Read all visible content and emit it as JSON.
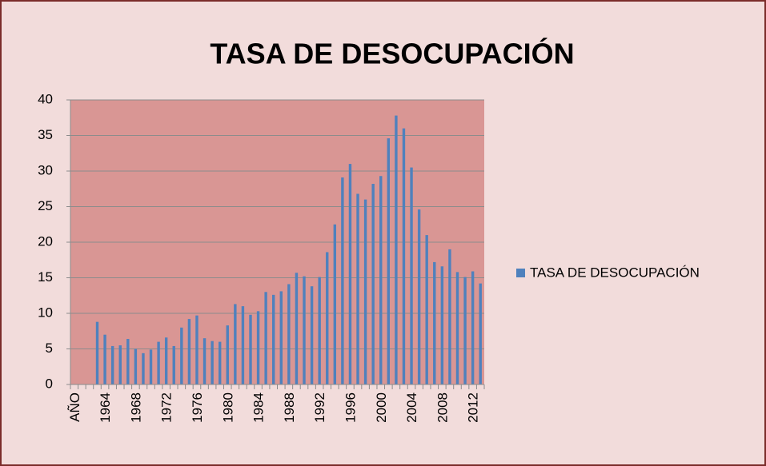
{
  "chart_data": {
    "type": "bar",
    "title": "TASA DE DESOCUPACIÓN",
    "categories": [
      "AÑO",
      null,
      null,
      null,
      "1964",
      null,
      null,
      null,
      "1968",
      null,
      null,
      null,
      "1972",
      null,
      null,
      null,
      "1976",
      null,
      null,
      null,
      "1980",
      null,
      null,
      null,
      "1984",
      null,
      null,
      null,
      "1988",
      null,
      null,
      null,
      "1992",
      null,
      null,
      null,
      "1996",
      null,
      null,
      null,
      "2000",
      null,
      null,
      null,
      "2004",
      null,
      null,
      null,
      "2008",
      null,
      null,
      null,
      "2012",
      null
    ],
    "series": [
      {
        "name": "TASA DE DESOCUPACIÓN",
        "color": "#4f81bd",
        "values": [
          null,
          null,
          null,
          8.8,
          7.0,
          5.4,
          5.5,
          6.4,
          5.0,
          4.4,
          4.9,
          6.0,
          6.6,
          5.4,
          8.0,
          9.2,
          9.7,
          6.5,
          6.1,
          6.0,
          8.3,
          11.3,
          11.0,
          9.8,
          10.3,
          13.0,
          12.6,
          13.1,
          14.1,
          15.7,
          15.2,
          13.8,
          15.1,
          18.6,
          22.5,
          29.1,
          31.0,
          26.8,
          26.0,
          28.2,
          29.3,
          34.6,
          37.8,
          36.0,
          30.5,
          24.6,
          21.0,
          17.2,
          16.6,
          19.0,
          15.8,
          15.1,
          15.9,
          14.2
        ]
      }
    ],
    "ylim": [
      0,
      40
    ],
    "yticks": [
      0,
      5,
      10,
      15,
      20,
      25,
      30,
      35,
      40
    ],
    "grid": true,
    "legend": "right"
  }
}
